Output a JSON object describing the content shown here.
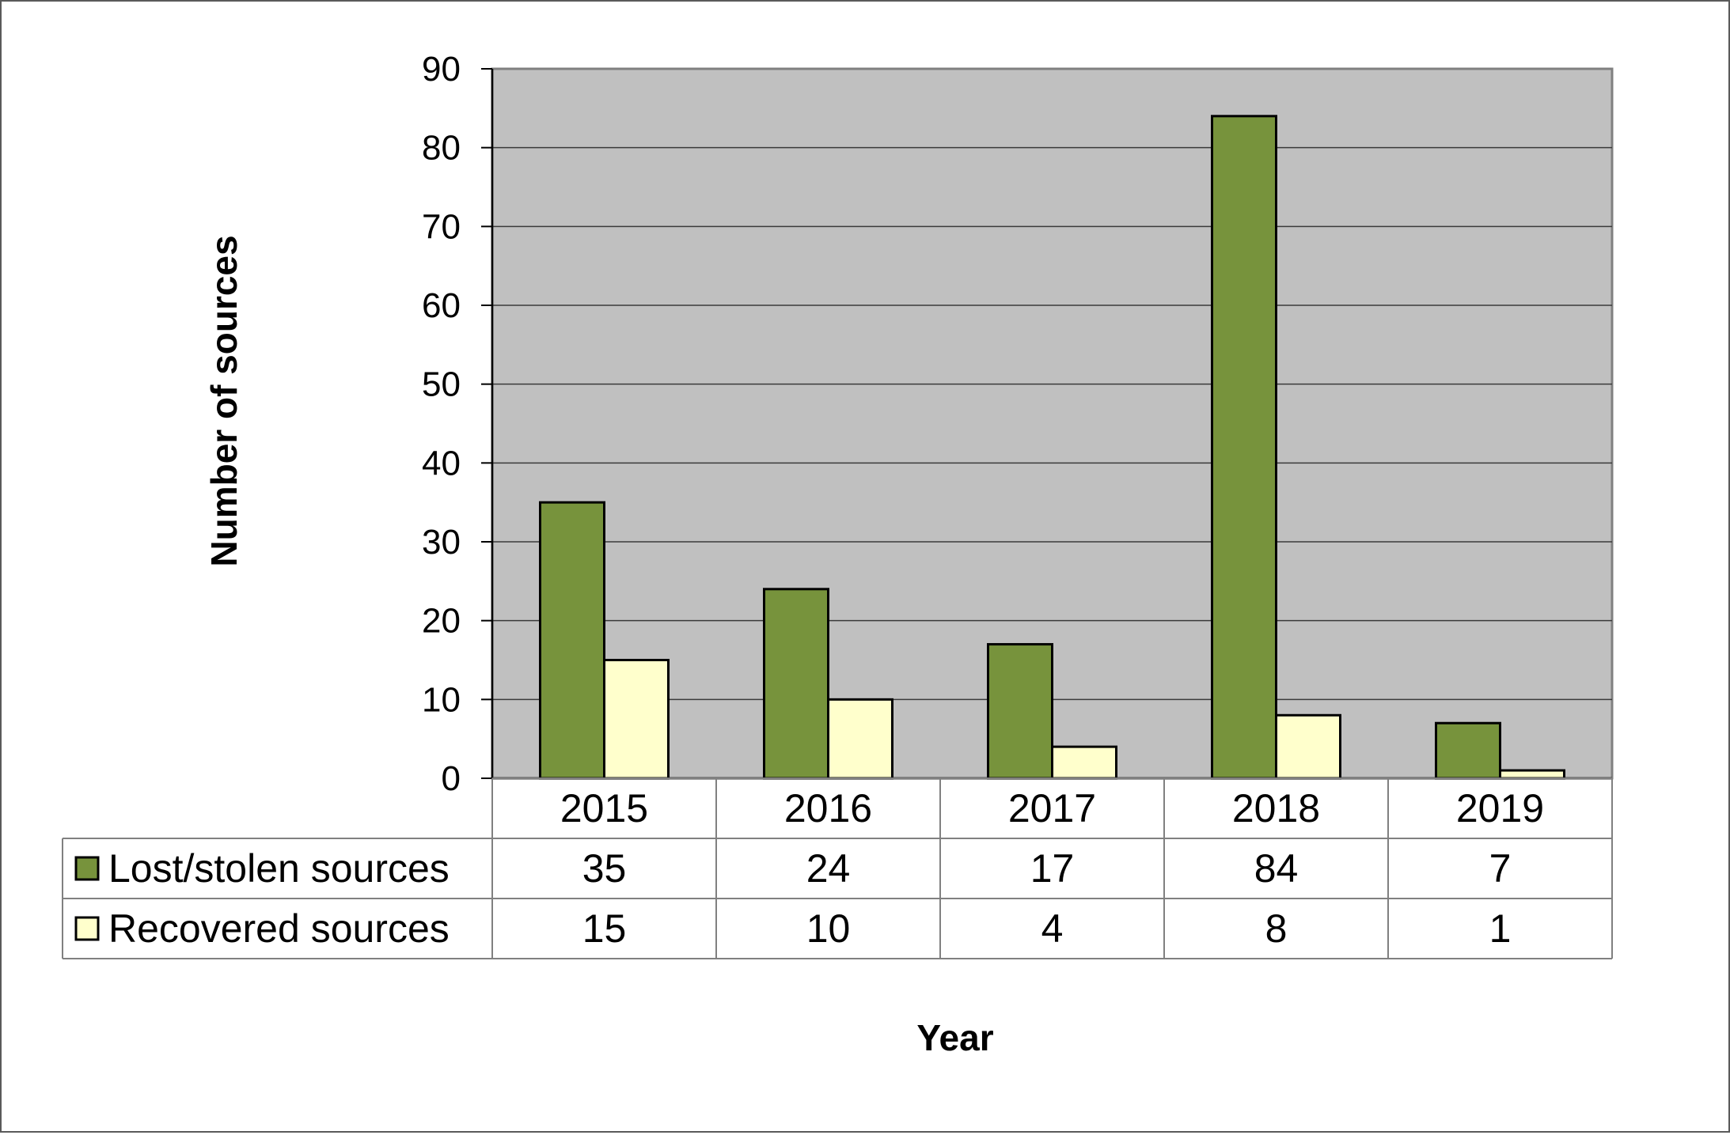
{
  "chart_data": {
    "type": "bar",
    "categories": [
      "2015",
      "2016",
      "2017",
      "2018",
      "2019"
    ],
    "series": [
      {
        "name": "Lost/stolen sources",
        "values": [
          35,
          24,
          17,
          84,
          7
        ],
        "color": "#77933c"
      },
      {
        "name": "Recovered sources",
        "values": [
          15,
          10,
          4,
          8,
          1
        ],
        "color": "#ffffcc"
      }
    ],
    "xlabel": "Year",
    "ylabel": "Number of sources",
    "ylim": [
      0,
      90
    ],
    "yticks": [
      0,
      10,
      20,
      30,
      40,
      50,
      60,
      70,
      80,
      90
    ],
    "grid": true,
    "plot_background": "#c0c0c0",
    "legend": "data-table"
  }
}
